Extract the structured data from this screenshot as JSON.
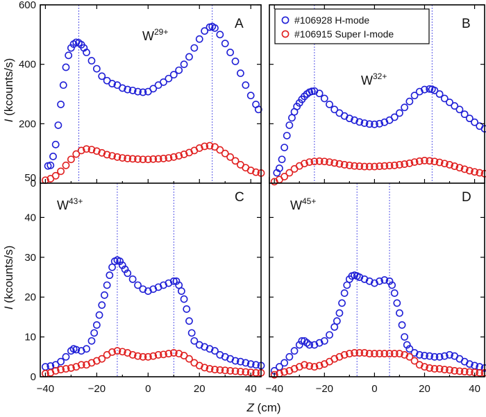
{
  "chart_data": [
    {
      "type": "scatter",
      "panel": "A",
      "ion": "W",
      "charge": "29+",
      "xlim": [
        -42,
        44
      ],
      "ylim": [
        0,
        600
      ],
      "yticks": [
        0,
        200,
        400,
        600
      ],
      "vlines": [
        -27,
        25
      ],
      "series": [
        {
          "name": "#106928 H-mode",
          "color": "#1f1fd6",
          "x": [
            -39,
            -38,
            -37,
            -36,
            -35,
            -34,
            -33,
            -32,
            -31,
            -30,
            -29,
            -28,
            -27,
            -26,
            -25,
            -24,
            -22,
            -20,
            -18,
            -16,
            -14,
            -12,
            -10,
            -8,
            -6,
            -4,
            -2,
            0,
            2,
            4,
            6,
            8,
            10,
            12,
            14,
            16,
            18,
            20,
            22,
            24,
            25,
            26,
            28,
            30,
            32,
            34,
            36,
            38,
            40,
            42,
            43
          ],
          "y": [
            58,
            60,
            90,
            130,
            195,
            265,
            330,
            390,
            430,
            455,
            468,
            474,
            472,
            466,
            455,
            440,
            412,
            385,
            360,
            345,
            335,
            330,
            320,
            315,
            312,
            308,
            306,
            308,
            318,
            330,
            340,
            352,
            365,
            380,
            400,
            425,
            455,
            485,
            512,
            525,
            527,
            522,
            500,
            470,
            440,
            410,
            370,
            330,
            295,
            265,
            248
          ]
        },
        {
          "name": "#106915 Super I-mode",
          "color": "#e01f1f",
          "x": [
            -40,
            -38,
            -36,
            -34,
            -32,
            -30,
            -28,
            -26,
            -24,
            -22,
            -20,
            -18,
            -16,
            -14,
            -12,
            -10,
            -8,
            -6,
            -4,
            -2,
            0,
            2,
            4,
            6,
            8,
            10,
            12,
            14,
            16,
            18,
            20,
            22,
            24,
            26,
            28,
            30,
            32,
            34,
            36,
            38,
            40,
            42,
            44
          ],
          "y": [
            10,
            15,
            25,
            40,
            60,
            80,
            98,
            110,
            115,
            113,
            108,
            102,
            96,
            92,
            88,
            85,
            83,
            82,
            81,
            80,
            80,
            81,
            82,
            83,
            85,
            88,
            92,
            97,
            103,
            110,
            118,
            124,
            126,
            122,
            112,
            100,
            88,
            75,
            62,
            52,
            43,
            37,
            34
          ]
        }
      ]
    },
    {
      "type": "scatter",
      "panel": "B",
      "ion": "W",
      "charge": "32+",
      "xlim": [
        -42,
        44
      ],
      "ylim": [
        0,
        600
      ],
      "yticks": [
        0,
        200,
        400,
        600
      ],
      "vlines": [
        -24,
        23
      ],
      "series": [
        {
          "name": "#106928 H-mode",
          "color": "#1f1fd6",
          "x": [
            -39,
            -38,
            -37,
            -36,
            -35,
            -34,
            -33,
            -32,
            -31,
            -30,
            -29,
            -28,
            -27,
            -26,
            -25,
            -24,
            -22,
            -20,
            -18,
            -16,
            -14,
            -12,
            -10,
            -8,
            -6,
            -4,
            -2,
            0,
            2,
            4,
            6,
            8,
            10,
            12,
            14,
            16,
            18,
            20,
            22,
            23,
            24,
            26,
            28,
            30,
            32,
            34,
            36,
            38,
            40,
            42,
            44
          ],
          "y": [
            35,
            50,
            80,
            120,
            160,
            195,
            220,
            240,
            258,
            270,
            282,
            292,
            300,
            306,
            309,
            310,
            302,
            285,
            265,
            248,
            236,
            226,
            218,
            212,
            206,
            202,
            199,
            198,
            200,
            205,
            212,
            222,
            236,
            255,
            275,
            295,
            308,
            315,
            317,
            316,
            312,
            300,
            285,
            272,
            260,
            248,
            232,
            218,
            205,
            192,
            183
          ]
        },
        {
          "name": "#106915 Super I-mode",
          "color": "#e01f1f",
          "x": [
            -40,
            -38,
            -36,
            -34,
            -32,
            -30,
            -28,
            -26,
            -24,
            -22,
            -20,
            -18,
            -16,
            -14,
            -12,
            -10,
            -8,
            -6,
            -4,
            -2,
            0,
            2,
            4,
            6,
            8,
            10,
            12,
            14,
            16,
            18,
            20,
            22,
            24,
            26,
            28,
            30,
            32,
            34,
            36,
            38,
            40,
            42,
            44
          ],
          "y": [
            5,
            12,
            22,
            35,
            48,
            58,
            66,
            71,
            73,
            74,
            73,
            71,
            68,
            65,
            62,
            60,
            58,
            57,
            56,
            56,
            56,
            57,
            58,
            59,
            60,
            62,
            64,
            67,
            71,
            74,
            76,
            75,
            73,
            70,
            66,
            62,
            57,
            52,
            47,
            42,
            38,
            35,
            32
          ]
        }
      ]
    },
    {
      "type": "scatter",
      "panel": "C",
      "ion": "W",
      "charge": "43+",
      "xlim": [
        -42,
        44
      ],
      "ylim": [
        0,
        50
      ],
      "yticks": [
        0,
        10,
        20,
        30,
        40,
        50
      ],
      "vlines": [
        -12,
        10
      ],
      "series": [
        {
          "name": "#106928 H-mode",
          "color": "#1f1fd6",
          "x": [
            -40,
            -38,
            -36,
            -34,
            -32,
            -30,
            -29,
            -28,
            -26,
            -24,
            -22,
            -21,
            -20,
            -19,
            -18,
            -17,
            -16,
            -15,
            -14,
            -13,
            -12,
            -11,
            -10,
            -9,
            -8,
            -6,
            -4,
            -2,
            0,
            2,
            4,
            6,
            8,
            10,
            11,
            12,
            13,
            14,
            15,
            16,
            17,
            18,
            20,
            22,
            24,
            26,
            28,
            30,
            32,
            34,
            36,
            38,
            40,
            42,
            44
          ],
          "y": [
            2.5,
            2.7,
            3,
            3.8,
            5,
            6.5,
            7,
            6.8,
            6.5,
            7,
            9,
            11,
            13,
            15.5,
            18,
            20.5,
            23,
            25.5,
            27.5,
            29,
            29.3,
            29,
            28,
            27,
            26,
            24.5,
            23,
            22,
            21.5,
            22,
            22.5,
            23,
            23.5,
            24,
            24,
            23,
            21.5,
            19.5,
            17,
            14,
            11,
            9,
            8,
            7.5,
            7,
            6.5,
            5.5,
            5,
            4.5,
            4,
            3.8,
            3.5,
            3.2,
            3,
            2.8
          ]
        },
        {
          "name": "#106915 Super I-mode",
          "color": "#e01f1f",
          "x": [
            -40,
            -38,
            -36,
            -34,
            -32,
            -30,
            -28,
            -26,
            -24,
            -22,
            -20,
            -18,
            -16,
            -14,
            -12,
            -10,
            -8,
            -6,
            -4,
            -2,
            0,
            2,
            4,
            6,
            8,
            10,
            12,
            14,
            16,
            18,
            20,
            22,
            24,
            26,
            28,
            30,
            32,
            34,
            36,
            38,
            40,
            42,
            44
          ],
          "y": [
            0.8,
            1,
            1.5,
            1.8,
            2,
            2.2,
            2.5,
            3,
            3,
            3.5,
            4,
            4.5,
            5.5,
            6.2,
            6.5,
            6.3,
            6,
            5.5,
            5.2,
            5,
            5,
            5.2,
            5.5,
            5.6,
            5.8,
            6,
            5.8,
            5.3,
            4.5,
            3.5,
            2.8,
            2.3,
            2,
            1.8,
            1.7,
            1.6,
            1.5,
            1.4,
            1.3,
            1.2,
            1.1,
            1,
            1
          ]
        }
      ]
    },
    {
      "type": "scatter",
      "panel": "D",
      "ion": "W",
      "charge": "45+",
      "xlim": [
        -42,
        44
      ],
      "ylim": [
        0,
        50
      ],
      "yticks": [
        0,
        10,
        20,
        30,
        40,
        50
      ],
      "vlines": [
        -7,
        6
      ],
      "series": [
        {
          "name": "#106928 H-mode",
          "color": "#1f1fd6",
          "x": [
            -40,
            -38,
            -36,
            -34,
            -32,
            -30,
            -29,
            -28,
            -27,
            -26,
            -24,
            -22,
            -20,
            -18,
            -16,
            -15,
            -14,
            -13,
            -12,
            -11,
            -10,
            -9,
            -8,
            -7,
            -6,
            -4,
            -2,
            0,
            2,
            4,
            6,
            7,
            8,
            9,
            10,
            11,
            12,
            13,
            14,
            16,
            18,
            20,
            22,
            24,
            26,
            28,
            30,
            32,
            34,
            36,
            38,
            40,
            42,
            44
          ],
          "y": [
            1.5,
            2.5,
            3.5,
            5,
            6.5,
            8,
            9,
            9,
            8.5,
            8,
            8,
            8.5,
            9,
            10.5,
            12.5,
            14,
            16,
            18.5,
            21,
            23,
            24.5,
            25.3,
            25.5,
            25.3,
            25,
            24.5,
            24,
            23.5,
            24,
            24.3,
            24,
            23,
            21,
            18.5,
            16,
            13,
            10,
            8,
            7,
            6,
            5.5,
            5.3,
            5.2,
            5,
            5,
            5.2,
            5.5,
            5.2,
            4.5,
            3.8,
            3.2,
            2.8,
            2.5,
            2.2
          ]
        },
        {
          "name": "#106915 Super I-mode",
          "color": "#e01f1f",
          "x": [
            -40,
            -38,
            -36,
            -34,
            -32,
            -30,
            -28,
            -26,
            -24,
            -22,
            -20,
            -18,
            -16,
            -14,
            -12,
            -10,
            -8,
            -6,
            -4,
            -2,
            0,
            2,
            4,
            6,
            8,
            10,
            12,
            14,
            16,
            18,
            20,
            22,
            24,
            26,
            28,
            30,
            32,
            34,
            36,
            38,
            40,
            42,
            44
          ],
          "y": [
            0.5,
            0.8,
            1.2,
            1.5,
            2,
            2.5,
            3,
            2.7,
            2.5,
            2.8,
            3.2,
            3.8,
            4.5,
            5,
            5.5,
            5.8,
            6,
            6,
            6,
            5.8,
            5.8,
            5.8,
            5.8,
            5.8,
            5.8,
            5.8,
            5.5,
            5,
            4,
            3,
            2.5,
            2.2,
            2,
            2,
            1.8,
            1.7,
            1.5,
            1.4,
            1.3,
            1.2,
            1.1,
            1,
            1
          ]
        }
      ]
    }
  ],
  "axes": {
    "ylabel_italic": "I",
    "ylabel_rest": " (kcounts/s)",
    "xlabel_italic": "Z",
    "xlabel_rest": " (cm)",
    "xticks": [
      -40,
      -20,
      0,
      20,
      40
    ]
  },
  "legend": {
    "entries": [
      "#106928 H-mode",
      "#106915 Super I-mode"
    ]
  }
}
